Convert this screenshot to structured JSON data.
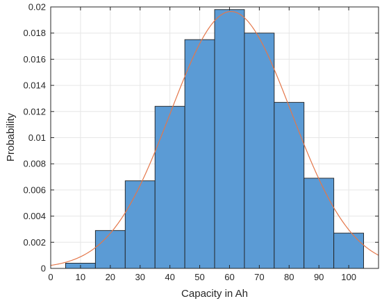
{
  "chart_data": {
    "type": "bar",
    "subtype": "histogram-with-normal-fit",
    "title": "",
    "xlabel": "Capacity in Ah",
    "ylabel": "Probability",
    "xlim": [
      0,
      110
    ],
    "ylim": [
      0,
      0.02
    ],
    "xticks": [
      0,
      10,
      20,
      30,
      40,
      50,
      60,
      70,
      80,
      90,
      100
    ],
    "yticks": [
      0,
      0.002,
      0.004,
      0.006,
      0.008,
      0.01,
      0.012,
      0.014,
      0.016,
      0.018,
      0.02
    ],
    "xtick_labels": [
      "0",
      "10",
      "20",
      "30",
      "40",
      "50",
      "60",
      "70",
      "80",
      "90",
      "100"
    ],
    "ytick_labels": [
      "0",
      "0.002",
      "0.004",
      "0.006",
      "0.008",
      "0.01",
      "0.012",
      "0.014",
      "0.016",
      "0.018",
      "0.02"
    ],
    "grid": true,
    "bin_edges": [
      5,
      15,
      25,
      35,
      45,
      55,
      65,
      75,
      85,
      95,
      105
    ],
    "values": [
      0.0004,
      0.0029,
      0.0067,
      0.0124,
      0.0175,
      0.0198,
      0.018,
      0.0127,
      0.0069,
      0.0027
    ],
    "fit": {
      "type": "normal",
      "mean": 60.5,
      "std": 20.3,
      "x_range": [
        0,
        110
      ]
    },
    "colors": {
      "bar_fill": "#5B9BD5",
      "bar_edge": "#1f1f1f",
      "fit_line": "#E4774A",
      "grid": "#e6e6e6",
      "axis": "#262626"
    }
  }
}
